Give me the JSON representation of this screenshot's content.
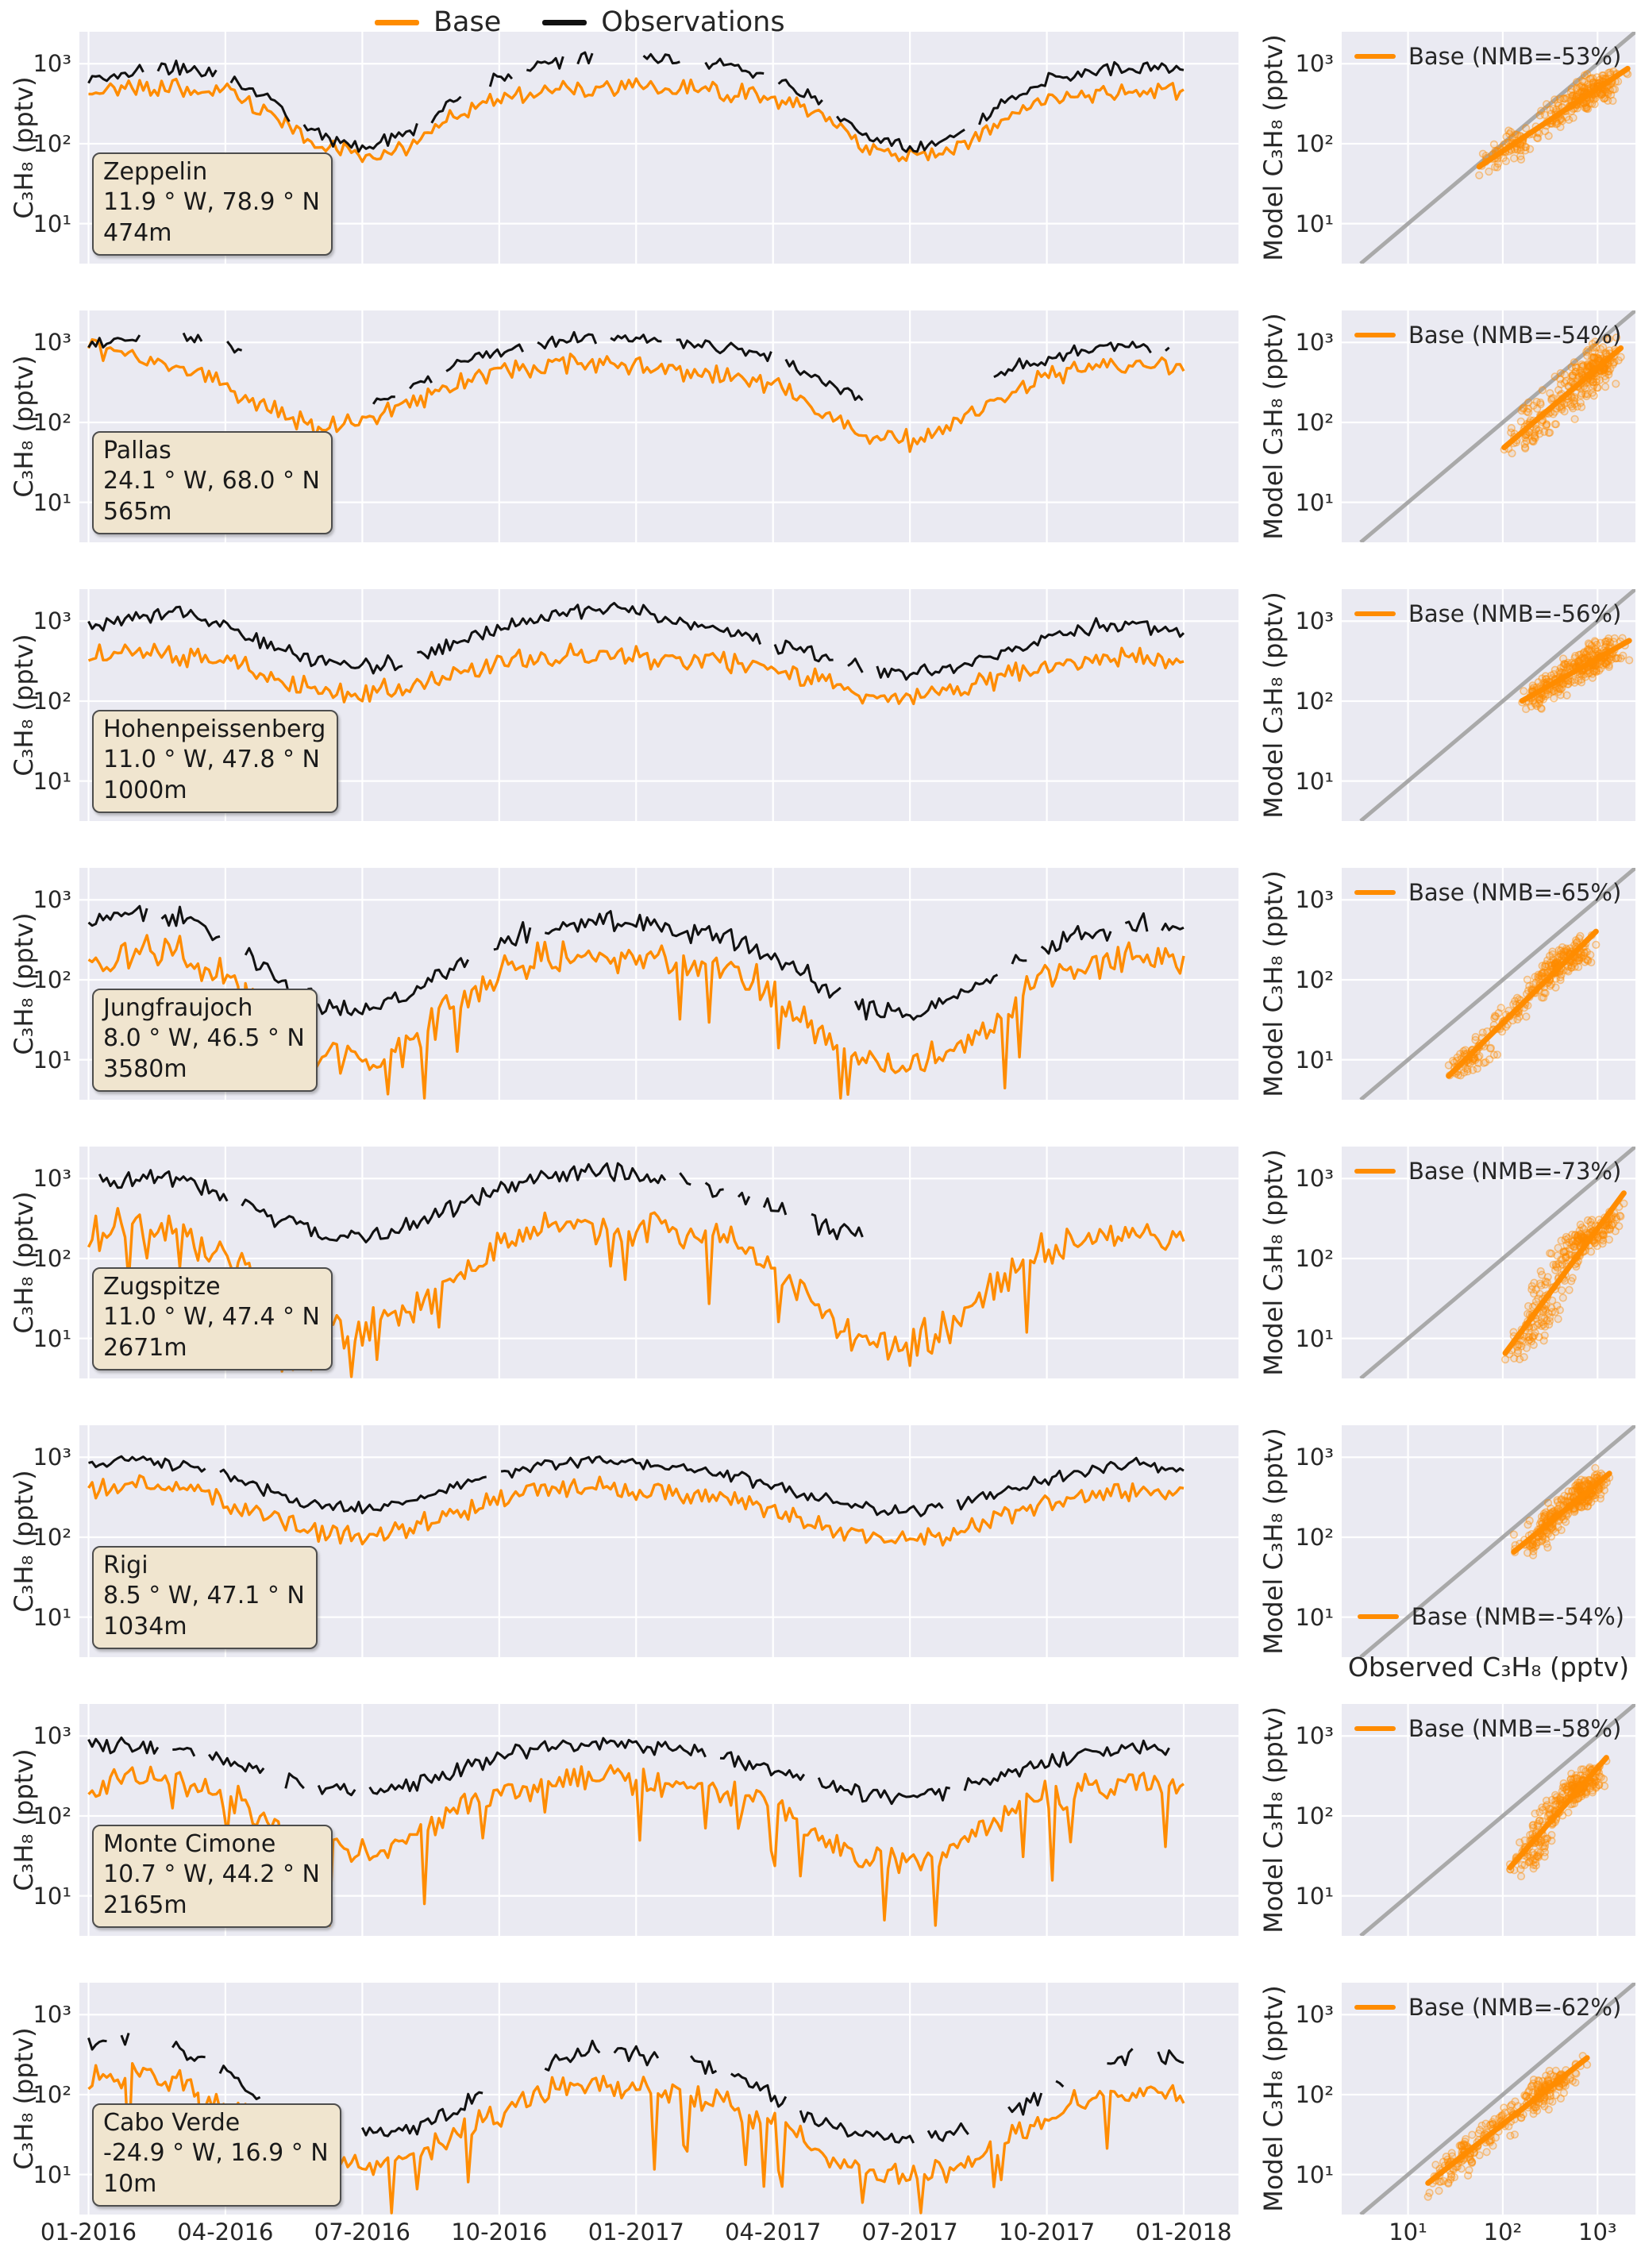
{
  "figure": {
    "legend": {
      "base_label": "Base",
      "obs_label": "Observations"
    },
    "colors": {
      "base": "#ff8c00",
      "obs": "#111111",
      "diagonal": "#a9a9a9",
      "panel_bg": "#eaeaf2",
      "grid": "#ffffff",
      "box_bg": "#f0e5cf",
      "text": "#262626"
    },
    "ts_ylabel": "C₃H₈ (pptv)",
    "scatter_ylabel": "Model C₃H₈ (pptv)",
    "scatter_xlabel": "Observed C₃H₈ (pptv)",
    "ytick_labels": [
      "10³",
      "10²",
      "10¹"
    ],
    "xtick_labels": [
      "01-2016",
      "04-2016",
      "07-2016",
      "10-2016",
      "01-2017",
      "04-2017",
      "07-2017",
      "10-2017",
      "01-2018"
    ],
    "scatter_xtick_labels": [
      "10¹",
      "10²",
      "10³"
    ]
  },
  "chart_data": {
    "type": "line+scatter",
    "y_scale": "log",
    "y_ticks": [
      10,
      100,
      1000
    ],
    "y_label": "C₃H₈ (pptv)",
    "x_tick_labels": [
      "01-2016",
      "04-2016",
      "07-2016",
      "10-2016",
      "01-2017",
      "04-2017",
      "07-2017",
      "10-2017",
      "01-2018"
    ],
    "x_monthly": [
      "2016-01",
      "2016-02",
      "2016-03",
      "2016-04",
      "2016-05",
      "2016-06",
      "2016-07",
      "2016-08",
      "2016-09",
      "2016-10",
      "2016-11",
      "2016-12",
      "2017-01",
      "2017-02",
      "2017-03",
      "2017-04",
      "2017-05",
      "2017-06",
      "2017-07",
      "2017-08",
      "2017-09",
      "2017-10",
      "2017-11",
      "2017-12",
      "2018-01"
    ],
    "scatter_axes": {
      "x_label": "Observed C₃H₈ (pptv)",
      "y_label": "Model C₃H₈ (pptv)",
      "x_ticks": [
        10,
        100,
        1000
      ],
      "y_ticks": [
        10,
        100,
        1000
      ],
      "diagonal": "1:1 line"
    },
    "panels": [
      {
        "station": {
          "name": "Zeppelin",
          "coords": "11.9 ° W, 78.9 ° N",
          "altitude": "474m"
        },
        "nmb_label": "Base (NMB=-53%)",
        "nmb_pct": -53,
        "legend_pos": "top-left",
        "obs_monthly": [
          650,
          780,
          880,
          700,
          350,
          130,
          90,
          130,
          350,
          700,
          1000,
          1250,
          1300,
          1100,
          950,
          700,
          350,
          130,
          85,
          120,
          300,
          600,
          850,
          950,
          850
        ],
        "base_monthly": [
          420,
          480,
          520,
          430,
          230,
          100,
          70,
          95,
          220,
          380,
          460,
          500,
          520,
          500,
          460,
          380,
          230,
          95,
          65,
          85,
          190,
          320,
          420,
          460,
          430
        ],
        "obs_gaps": [
          [
            11.4,
            12.1
          ],
          [
            13.0,
            13.4
          ]
        ],
        "gap_prob": 0.05,
        "obs_jit": 0.1,
        "base_jit": 0.14,
        "base_dips": false
      },
      {
        "station": {
          "name": "Pallas",
          "coords": "24.1 ° W, 68.0 ° N",
          "altitude": "565m"
        },
        "nmb_label": "Base (NMB=-54%)",
        "nmb_pct": -54,
        "legend_pos": "top-left",
        "obs_monthly": [
          950,
          1150,
          1200,
          950,
          550,
          220,
          160,
          260,
          500,
          800,
          1000,
          1150,
          1100,
          1000,
          880,
          680,
          380,
          180,
          150,
          210,
          420,
          650,
          850,
          900,
          820
        ],
        "base_monthly": [
          850,
          700,
          480,
          280,
          140,
          85,
          105,
          170,
          300,
          450,
          520,
          560,
          520,
          460,
          400,
          300,
          150,
          70,
          60,
          95,
          210,
          360,
          480,
          530,
          500
        ],
        "obs_gaps": [
          [
            1.2,
            2.0
          ],
          [
            2.5,
            3.0
          ],
          [
            3.4,
            6.2
          ],
          [
            17.0,
            19.8
          ]
        ],
        "gap_prob": 0.03,
        "obs_jit": 0.1,
        "base_jit": 0.16,
        "base_dips": false
      },
      {
        "station": {
          "name": "Hohenpeissenberg",
          "coords": "11.0 ° W, 47.8 ° N",
          "altitude": "1000m"
        },
        "nmb_label": "Base (NMB=-56%)",
        "nmb_pct": -56,
        "legend_pos": "top-left",
        "obs_monthly": [
          900,
          1100,
          1300,
          900,
          520,
          310,
          260,
          310,
          520,
          820,
          1150,
          1400,
          1300,
          1000,
          800,
          520,
          360,
          260,
          230,
          270,
          420,
          620,
          820,
          920,
          720
        ],
        "base_monthly": [
          350,
          400,
          380,
          300,
          200,
          130,
          120,
          150,
          220,
          300,
          350,
          380,
          350,
          330,
          300,
          250,
          180,
          120,
          110,
          130,
          200,
          280,
          330,
          350,
          300
        ],
        "obs_gaps": [],
        "gap_prob": 0.02,
        "obs_jit": 0.12,
        "base_jit": 0.16,
        "base_dips": false
      },
      {
        "station": {
          "name": "Jungfraujoch",
          "coords": "8.0 ° W, 46.5 ° N",
          "altitude": "3580m"
        },
        "nmb_label": "Base (NMB=-65%)",
        "nmb_pct": -65,
        "legend_pos": "top-left",
        "obs_monthly": [
          500,
          700,
          600,
          300,
          120,
          50,
          40,
          60,
          150,
          300,
          450,
          550,
          500,
          400,
          350,
          200,
          90,
          45,
          35,
          55,
          120,
          250,
          400,
          500,
          420
        ],
        "base_monthly": [
          180,
          220,
          200,
          100,
          30,
          12,
          10,
          15,
          50,
          120,
          180,
          200,
          190,
          170,
          140,
          70,
          25,
          10,
          8,
          12,
          40,
          100,
          160,
          190,
          160
        ],
        "obs_gaps": [
          [
            2.9,
            3.4
          ],
          [
            8.4,
            8.8
          ]
        ],
        "gap_prob": 0.05,
        "obs_jit": 0.16,
        "base_jit": 0.26,
        "base_dips": true
      },
      {
        "station": {
          "name": "Zugspitze",
          "coords": "11.0 ° W, 47.4 ° N",
          "altitude": "2671m"
        },
        "nmb_label": "Base (NMB=-73%)",
        "nmb_pct": -73,
        "legend_pos": "top-left",
        "obs_monthly": [
          900,
          1100,
          1000,
          620,
          320,
          210,
          190,
          260,
          420,
          720,
          1050,
          1250,
          1150,
          900,
          700,
          460,
          260,
          190,
          170,
          210,
          310,
          460,
          620,
          720,
          660
        ],
        "base_monthly": [
          200,
          250,
          220,
          120,
          40,
          15,
          12,
          20,
          60,
          150,
          220,
          260,
          240,
          200,
          160,
          80,
          25,
          10,
          8,
          15,
          60,
          120,
          170,
          200,
          180
        ],
        "obs_gaps": [
          [
            17.0,
            25.5
          ]
        ],
        "gap_prob": 0.03,
        "obs_jit": 0.14,
        "base_jit": 0.28,
        "base_dips": true
      },
      {
        "station": {
          "name": "Rigi",
          "coords": "8.5 ° W, 47.1 ° N",
          "altitude": "1034m"
        },
        "nmb_label": "Base (NMB=-54%)",
        "nmb_pct": -54,
        "legend_pos": "bottom-right",
        "obs_monthly": [
          800,
          900,
          850,
          620,
          360,
          260,
          230,
          290,
          420,
          620,
          820,
          920,
          860,
          720,
          620,
          420,
          310,
          230,
          210,
          260,
          360,
          520,
          660,
          820,
          720
        ],
        "base_monthly": [
          400,
          450,
          400,
          280,
          180,
          120,
          100,
          130,
          200,
          300,
          380,
          420,
          400,
          350,
          300,
          220,
          150,
          100,
          90,
          110,
          180,
          260,
          330,
          380,
          350
        ],
        "obs_gaps": [],
        "gap_prob": 0.02,
        "obs_jit": 0.1,
        "base_jit": 0.15,
        "base_dips": false
      },
      {
        "station": {
          "name": "Monte Cimone",
          "coords": "10.7 ° W, 44.2 ° N",
          "altitude": "2165m"
        },
        "nmb_label": "Base (NMB=-58%)",
        "nmb_pct": -58,
        "legend_pos": "top-left",
        "obs_monthly": [
          700,
          800,
          760,
          520,
          310,
          210,
          190,
          230,
          360,
          560,
          720,
          820,
          760,
          660,
          560,
          390,
          260,
          190,
          170,
          210,
          310,
          460,
          620,
          720,
          660
        ],
        "base_monthly": [
          250,
          300,
          280,
          180,
          90,
          40,
          35,
          50,
          120,
          200,
          260,
          300,
          280,
          240,
          200,
          130,
          60,
          30,
          25,
          40,
          100,
          170,
          230,
          260,
          240
        ],
        "obs_gaps": [
          [
            3.9,
            4.3
          ]
        ],
        "gap_prob": 0.03,
        "obs_jit": 0.12,
        "base_jit": 0.22,
        "base_dips": true
      },
      {
        "station": {
          "name": "Cabo Verde",
          "coords": "-24.9 ° W, 16.9 ° N",
          "altitude": "10m"
        },
        "nmb_label": "Base (NMB=-62%)",
        "nmb_pct": -62,
        "legend_pos": "top-left",
        "obs_monthly": [
          400,
          500,
          360,
          210,
          85,
          42,
          32,
          36,
          62,
          125,
          260,
          360,
          310,
          260,
          185,
          92,
          46,
          31,
          26,
          32,
          52,
          105,
          210,
          310,
          260
        ],
        "base_monthly": [
          150,
          180,
          150,
          80,
          35,
          18,
          14,
          16,
          30,
          60,
          110,
          140,
          130,
          110,
          80,
          40,
          20,
          12,
          9,
          12,
          25,
          50,
          90,
          120,
          110
        ],
        "obs_gaps": [
          [
            0.9,
            1.5
          ],
          [
            3.8,
            4.3
          ],
          [
            9.0,
            9.6
          ],
          [
            12.5,
            13.2
          ],
          [
            19.3,
            20.1
          ],
          [
            21.4,
            22.2
          ],
          [
            22.9,
            23.4
          ]
        ],
        "gap_prob": 0.07,
        "obs_jit": 0.14,
        "base_jit": 0.22,
        "base_dips": true
      }
    ]
  }
}
